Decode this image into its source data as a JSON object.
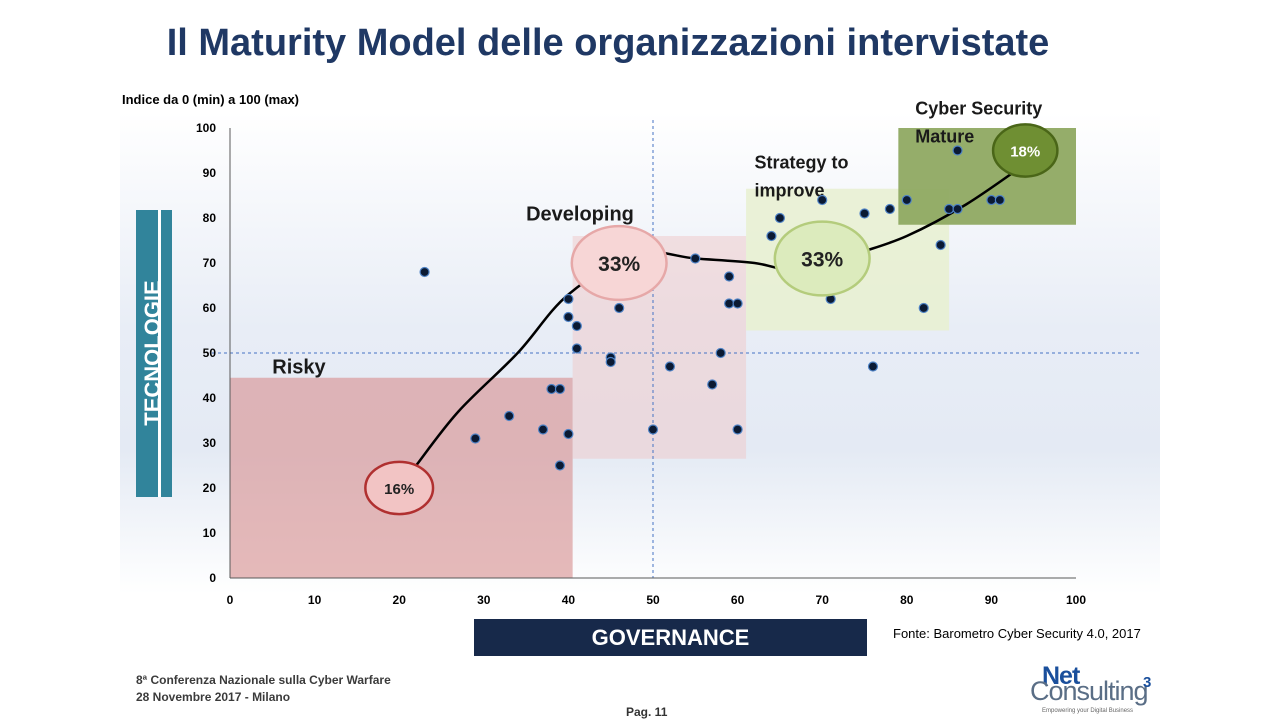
{
  "slide": {
    "title": "Il Maturity Model delle organizzazioni intervistate",
    "subtitle": "Indice da 0 (min) a 100 (max)",
    "source": "Fonte: Barometro Cyber Security 4.0, 2017",
    "footer_line1": "8ª Conferenza Nazionale sulla Cyber Warfare",
    "footer_line2": "28 Novembre 2017  - Milano",
    "page": "Pag. 11"
  },
  "logo": {
    "net": "Net",
    "consulting": "Consulting",
    "superscript": "3",
    "tagline": "Empowering your Digital Business"
  },
  "chart_data": {
    "type": "scatter",
    "title": "Il Maturity Model delle organizzazioni intervistate",
    "xlabel": "GOVERNANCE",
    "ylabel": "TECNOLOGIE",
    "xlim": [
      0,
      100
    ],
    "ylim": [
      0,
      100
    ],
    "xticks": [
      0,
      10,
      20,
      30,
      40,
      50,
      60,
      70,
      80,
      90,
      100
    ],
    "yticks": [
      0,
      10,
      20,
      30,
      40,
      50,
      60,
      70,
      80,
      90,
      100
    ],
    "reference_lines": {
      "x": 50,
      "y": 50
    },
    "points": [
      [
        23,
        68
      ],
      [
        29,
        31
      ],
      [
        33,
        36
      ],
      [
        37,
        33
      ],
      [
        38,
        42
      ],
      [
        39,
        42
      ],
      [
        39,
        25
      ],
      [
        40,
        32
      ],
      [
        40,
        62
      ],
      [
        40,
        58
      ],
      [
        41,
        56
      ],
      [
        41,
        51
      ],
      [
        45,
        49
      ],
      [
        45,
        48
      ],
      [
        46,
        60
      ],
      [
        50,
        33
      ],
      [
        52,
        47
      ],
      [
        55,
        71
      ],
      [
        57,
        43
      ],
      [
        58,
        50
      ],
      [
        59,
        67
      ],
      [
        59,
        61
      ],
      [
        60,
        61
      ],
      [
        60,
        33
      ],
      [
        64,
        76
      ],
      [
        65,
        80
      ],
      [
        70,
        84
      ],
      [
        71,
        62
      ],
      [
        75,
        81
      ],
      [
        76,
        47
      ],
      [
        78,
        82
      ],
      [
        80,
        84
      ],
      [
        82,
        60
      ],
      [
        84,
        74
      ],
      [
        85,
        82
      ],
      [
        86,
        82
      ],
      [
        86,
        95
      ],
      [
        90,
        84
      ],
      [
        91,
        84
      ]
    ],
    "zones": [
      {
        "name": "Risky",
        "x": [
          0,
          40.5
        ],
        "y": [
          0,
          44.5
        ],
        "fill": "#d99595",
        "opacity": 0.65,
        "label_at": [
          5,
          45.5
        ]
      },
      {
        "name": "Developing",
        "x": [
          40.5,
          61
        ],
        "y": [
          26.5,
          76
        ],
        "fill": "#f0c8c8",
        "opacity": 0.5,
        "label_at": [
          35,
          79.5
        ]
      },
      {
        "name": "Strategy to improve",
        "x": [
          61,
          85
        ],
        "y": [
          55,
          86.5
        ],
        "fill": "#e8f0d0",
        "opacity": 0.85,
        "label_at": [
          62,
          91
        ]
      },
      {
        "name": "Cyber Security Mature",
        "x": [
          79,
          100
        ],
        "y": [
          78.5,
          100
        ],
        "fill": "#8fa962",
        "opacity": 0.95,
        "label_at": [
          81,
          103
        ]
      }
    ],
    "zone_labels": [
      {
        "lines": [
          "Risky"
        ]
      },
      {
        "lines": [
          "Developing"
        ]
      },
      {
        "lines": [
          "Strategy to",
          "improve"
        ]
      },
      {
        "lines": [
          "Cyber Security",
          "Mature"
        ]
      }
    ],
    "maturity_curve": [
      [
        22,
        25
      ],
      [
        27,
        37
      ],
      [
        34,
        50
      ],
      [
        40,
        63
      ],
      [
        48,
        72
      ],
      [
        55,
        71
      ],
      [
        62,
        70
      ],
      [
        68,
        68
      ],
      [
        74,
        72
      ],
      [
        80,
        76
      ],
      [
        87,
        83
      ],
      [
        94,
        92
      ]
    ],
    "bubbles": [
      {
        "label": "16%",
        "x": 20,
        "y": 20,
        "rx": 4.0,
        "ry": 5.8,
        "fill": "#f2c4c4",
        "stroke": "#b03030",
        "text_color": "#222222"
      },
      {
        "label": "33%",
        "x": 46,
        "y": 70,
        "rx": 5.6,
        "ry": 8.2,
        "fill": "#f7d6d6",
        "stroke": "#e6a8a8",
        "text_color": "#222222"
      },
      {
        "label": "33%",
        "x": 70,
        "y": 71,
        "rx": 5.6,
        "ry": 8.2,
        "fill": "#dcebbd",
        "stroke": "#b4cc7c",
        "text_color": "#222222"
      },
      {
        "label": "18%",
        "x": 94,
        "y": 95,
        "rx": 3.8,
        "ry": 5.8,
        "fill": "#6f8f33",
        "stroke": "#4a6618",
        "text_color": "#ffffff"
      }
    ],
    "colors": {
      "points": "#0b1a33",
      "point_outline": "#4f83c6",
      "curve": "#000000",
      "axis": "#595959",
      "reference": "#4472c4"
    }
  }
}
